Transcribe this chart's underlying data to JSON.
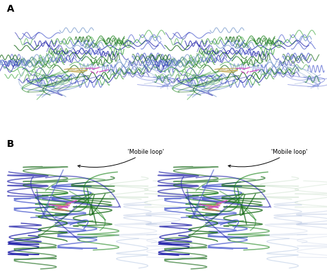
{
  "panel_A_label": "A",
  "panel_B_label": "B",
  "annotation_text": "'Mobile loop'",
  "background_color": "#ffffff",
  "blue_dark": "#2222aa",
  "blue_med": "#4455cc",
  "blue_light": "#7799cc",
  "green_dark": "#116611",
  "green_med": "#228822",
  "green_light": "#44aa44",
  "light_blue_ghost": "#aabbdd",
  "pink_color": "#cc44bb",
  "tan_color": "#c8b060",
  "salmon_color": "#cc8866",
  "fig_width": 4.74,
  "fig_height": 3.93,
  "label_fontsize": 10,
  "annotation_fontsize": 6.0,
  "dpi": 100
}
